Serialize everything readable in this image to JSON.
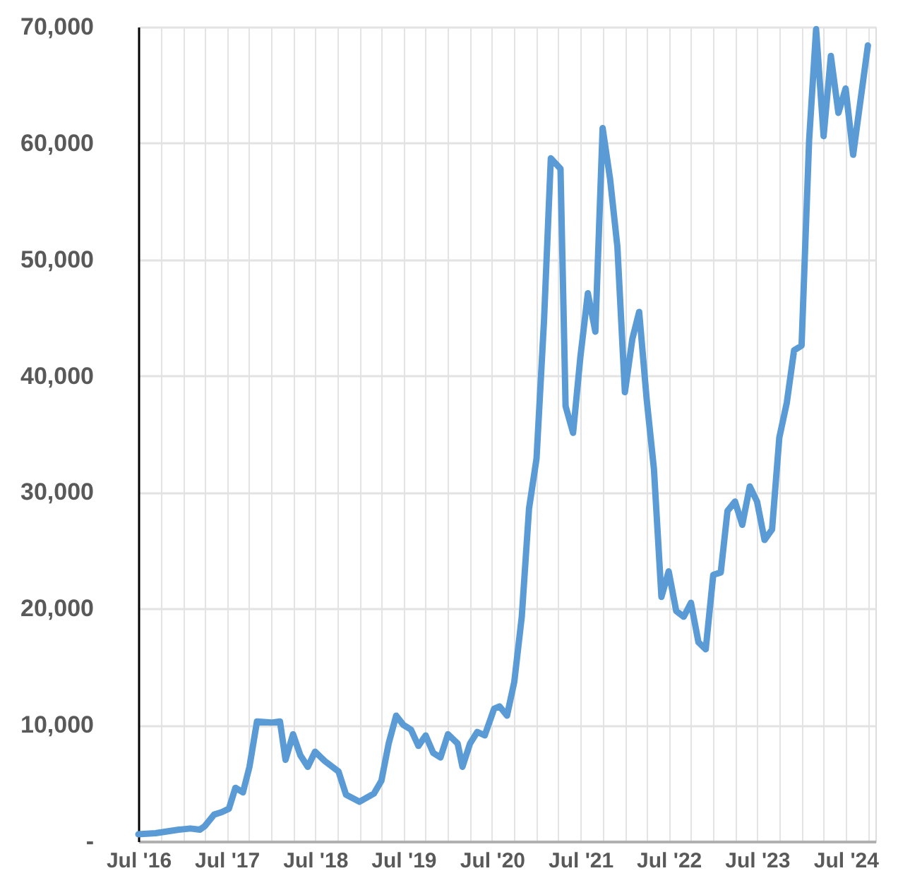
{
  "chart_data": {
    "type": "line",
    "x": [
      "2016-07",
      "2016-09-10",
      "2016-12-15",
      "2017-02",
      "2017-03-12",
      "2017-04",
      "2017-05-10",
      "2017-06-10",
      "2017-07-10",
      "2017-08-06",
      "2017-09-06",
      "2017-10-03",
      "2017-11-03",
      "2018-01",
      "2018-02-06",
      "2018-03",
      "2018-04",
      "2018-05",
      "2018-06",
      "2018-07",
      "2018-08-10",
      "2018-10-06",
      "2018-11-06",
      "2019-01",
      "2019-03",
      "2019-04",
      "2019-05",
      "2019-06",
      "2019-07",
      "2019-08",
      "2019-09",
      "2019-10",
      "2019-11",
      "2019-12",
      "2020-01",
      "2020-02-10",
      "2020-03",
      "2020-04",
      "2020-05",
      "2020-06",
      "2020-07-10",
      "2020-08",
      "2020-09",
      "2020-10",
      "2020-11",
      "2020-12",
      "2021-01",
      "2021-02",
      "2021-03",
      "2021-04-10",
      "2021-05",
      "2021-06",
      "2021-07",
      "2021-08",
      "2021-09",
      "2021-10",
      "2021-11",
      "2021-12",
      "2022-01",
      "2022-02",
      "2022-03",
      "2022-04",
      "2022-05",
      "2022-06",
      "2022-07",
      "2022-08",
      "2022-09",
      "2022-10",
      "2022-11",
      "2022-12",
      "2023-01",
      "2023-02",
      "2023-03",
      "2023-04",
      "2023-05",
      "2023-06",
      "2023-07",
      "2023-08",
      "2023-09",
      "2023-10",
      "2023-11",
      "2023-12",
      "2024-01",
      "2024-02",
      "2024-03",
      "2024-04",
      "2024-05",
      "2024-06",
      "2024-07",
      "2024-08",
      "2024-10"
    ],
    "series": [
      {
        "color": "#5b9bd5",
        "values": [
          600,
          700,
          1000,
          1100,
          1000,
          1300,
          2300,
          2500,
          2800,
          4600,
          4200,
          6400,
          10300,
          10200,
          10300,
          7000,
          9200,
          7400,
          6400,
          7700,
          6900,
          6000,
          4000,
          3400,
          4100,
          5200,
          8400,
          10800,
          10000,
          9600,
          8200,
          9100,
          7600,
          7200,
          9200,
          8400,
          6400,
          8400,
          9400,
          9100,
          11400,
          11600,
          10800,
          13700,
          19300,
          28600,
          32900,
          44800,
          58700,
          57800,
          37400,
          35100,
          41600,
          47100,
          43800,
          61300,
          56900,
          51100,
          38600,
          43200,
          45500,
          38000,
          32000,
          21000,
          23200,
          19800,
          19300,
          20500,
          17100,
          16500,
          22900,
          23100,
          28400,
          29200,
          27200,
          30500,
          29200,
          25900,
          26800,
          34700,
          37700,
          42200,
          42600,
          60200,
          69800,
          60600,
          67500,
          62600,
          64700,
          59000,
          68400
        ]
      }
    ],
    "xlim": [
      "2016-07",
      "2024-11"
    ],
    "xticks": [
      {
        "value": "2016-07",
        "label": "Jul '16"
      },
      {
        "value": "2016-10",
        "label": null
      },
      {
        "value": "2017-01",
        "label": null
      },
      {
        "value": "2017-04",
        "label": null
      },
      {
        "value": "2017-07",
        "label": "Jul '17"
      },
      {
        "value": "2017-10",
        "label": null
      },
      {
        "value": "2018-01",
        "label": null
      },
      {
        "value": "2018-04",
        "label": null
      },
      {
        "value": "2018-07",
        "label": "Jul '18"
      },
      {
        "value": "2018-10",
        "label": null
      },
      {
        "value": "2019-01",
        "label": null
      },
      {
        "value": "2019-04",
        "label": null
      },
      {
        "value": "2019-07",
        "label": "Jul '19"
      },
      {
        "value": "2019-10",
        "label": null
      },
      {
        "value": "2020-01",
        "label": null
      },
      {
        "value": "2020-04",
        "label": null
      },
      {
        "value": "2020-07",
        "label": "Jul '20"
      },
      {
        "value": "2020-10",
        "label": null
      },
      {
        "value": "2021-01",
        "label": null
      },
      {
        "value": "2021-04",
        "label": null
      },
      {
        "value": "2021-07",
        "label": "Jul '21"
      },
      {
        "value": "2021-10",
        "label": null
      },
      {
        "value": "2022-01",
        "label": null
      },
      {
        "value": "2022-04",
        "label": null
      },
      {
        "value": "2022-07",
        "label": "Jul '22"
      },
      {
        "value": "2022-10",
        "label": null
      },
      {
        "value": "2023-01",
        "label": null
      },
      {
        "value": "2023-04",
        "label": null
      },
      {
        "value": "2023-07",
        "label": "Jul '23"
      },
      {
        "value": "2023-10",
        "label": null
      },
      {
        "value": "2024-01",
        "label": null
      },
      {
        "value": "2024-04",
        "label": null
      },
      {
        "value": "2024-07",
        "label": "Jul '24"
      },
      {
        "value": "2024-10",
        "label": null
      }
    ],
    "ylim": [
      0,
      70000
    ],
    "yticks": [
      {
        "value": 0,
        "label": "-"
      },
      {
        "value": 10000,
        "label": "10,000"
      },
      {
        "value": 20000,
        "label": "20,000"
      },
      {
        "value": 30000,
        "label": "30,000"
      },
      {
        "value": 40000,
        "label": "40,000"
      },
      {
        "value": 50000,
        "label": "50,000"
      },
      {
        "value": 60000,
        "label": "60,000"
      },
      {
        "value": 70000,
        "label": "70,000"
      }
    ],
    "grid": true,
    "marker": "none",
    "line_style": "solid",
    "legend": false
  }
}
